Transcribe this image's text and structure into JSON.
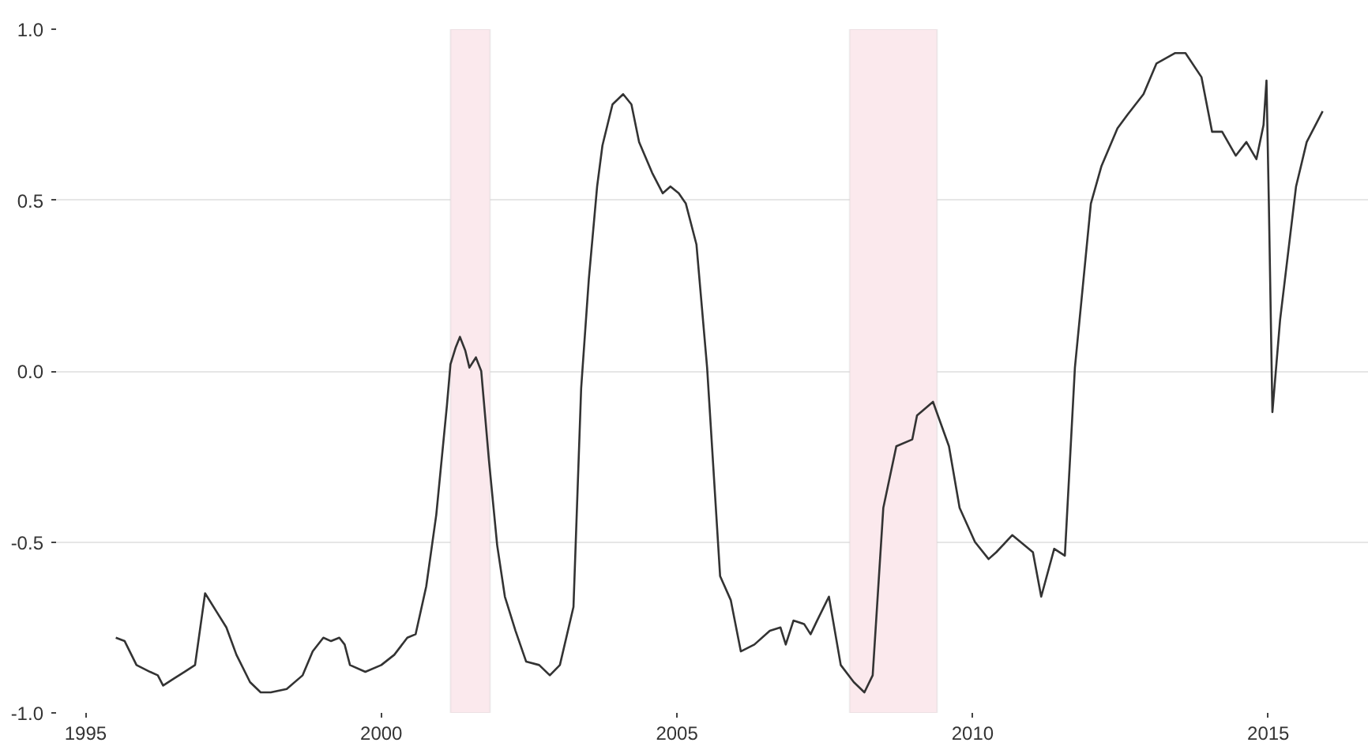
{
  "chart_data": {
    "type": "line",
    "x": [
      1995.51,
      1995.66,
      1995.86,
      1996.09,
      1996.22,
      1996.31,
      1996.49,
      1996.67,
      1996.85,
      1997.02,
      1997.2,
      1997.38,
      1997.55,
      1997.78,
      1997.96,
      1998.13,
      1998.4,
      1998.67,
      1998.84,
      1999.02,
      1999.15,
      1999.29,
      1999.38,
      1999.47,
      1999.73,
      2000.0,
      2000.22,
      2000.44,
      2000.58,
      2000.76,
      2000.93,
      2001.11,
      2001.17,
      2001.26,
      2001.33,
      2001.42,
      2001.49,
      2001.6,
      2001.69,
      2001.82,
      2001.96,
      2002.09,
      2002.27,
      2002.45,
      2002.67,
      2002.85,
      2003.02,
      2003.25,
      2003.38,
      2003.51,
      2003.65,
      2003.74,
      2003.91,
      2004.09,
      2004.23,
      2004.36,
      2004.58,
      2004.76,
      2004.89,
      2005.03,
      2005.15,
      2005.33,
      2005.51,
      2005.73,
      2005.91,
      2006.08,
      2006.31,
      2006.57,
      2006.75,
      2006.84,
      2006.97,
      2007.15,
      2007.26,
      2007.37,
      2007.57,
      2007.77,
      2007.99,
      2008.17,
      2008.31,
      2008.49,
      2008.71,
      2008.98,
      2009.06,
      2009.33,
      2009.6,
      2009.78,
      2010.04,
      2010.27,
      2010.4,
      2010.67,
      2011.02,
      2011.16,
      2011.38,
      2011.56,
      2011.73,
      2012.0,
      2012.18,
      2012.45,
      2012.62,
      2012.89,
      2013.11,
      2013.42,
      2013.6,
      2013.87,
      2014.05,
      2014.22,
      2014.45,
      2014.63,
      2014.8,
      2014.92,
      2014.97,
      2015.01,
      2015.07,
      2015.2,
      2015.47,
      2015.65,
      2015.92
    ],
    "series": [
      {
        "color": "#333333",
        "values": [
          -0.78,
          -0.79,
          -0.86,
          -0.88,
          -0.89,
          -0.92,
          -0.9,
          -0.88,
          -0.86,
          -0.65,
          -0.7,
          -0.75,
          -0.83,
          -0.91,
          -0.94,
          -0.94,
          -0.93,
          -0.89,
          -0.82,
          -0.78,
          -0.79,
          -0.78,
          -0.8,
          -0.86,
          -0.88,
          -0.86,
          -0.83,
          -0.78,
          -0.77,
          -0.63,
          -0.42,
          -0.1,
          0.02,
          0.07,
          0.1,
          0.06,
          0.01,
          0.04,
          0.0,
          -0.26,
          -0.51,
          -0.66,
          -0.76,
          -0.85,
          -0.86,
          -0.89,
          -0.86,
          -0.69,
          -0.05,
          0.27,
          0.54,
          0.66,
          0.78,
          0.81,
          0.78,
          0.67,
          0.58,
          0.52,
          0.54,
          0.52,
          0.49,
          0.37,
          0.01,
          -0.6,
          -0.67,
          -0.82,
          -0.8,
          -0.76,
          -0.75,
          -0.8,
          -0.73,
          -0.74,
          -0.77,
          -0.73,
          -0.66,
          -0.86,
          -0.91,
          -0.94,
          -0.89,
          -0.4,
          -0.22,
          -0.2,
          -0.13,
          -0.09,
          -0.22,
          -0.4,
          -0.5,
          -0.55,
          -0.53,
          -0.48,
          -0.53,
          -0.66,
          -0.52,
          -0.54,
          0.01,
          0.49,
          0.6,
          0.71,
          0.75,
          0.81,
          0.9,
          0.93,
          0.93,
          0.86,
          0.7,
          0.7,
          0.63,
          0.67,
          0.62,
          0.72,
          0.85,
          0.49,
          -0.12,
          0.15,
          0.54,
          0.67,
          0.76
        ]
      }
    ],
    "xlim": [
      1994.5,
      2016.7
    ],
    "ylim": [
      -1,
      1
    ],
    "xticks": [
      1995,
      2000,
      2005,
      2010,
      2015
    ],
    "yticks": [
      {
        "value": 1,
        "label": "1.0"
      },
      {
        "value": 0.5,
        "label": "0.5"
      },
      {
        "value": 0,
        "label": "0.0"
      },
      {
        "value": -0.5,
        "label": "-0.5"
      },
      {
        "value": -1,
        "label": "-1.0"
      }
    ],
    "bands": [
      {
        "axis": "x",
        "from": 2001.17,
        "to": 2001.84,
        "color": "#fbe9ed"
      },
      {
        "axis": "x",
        "from": 2007.92,
        "to": 2009.4,
        "color": "#fbe9ed"
      }
    ],
    "grid": "y",
    "line_style": "solid"
  }
}
